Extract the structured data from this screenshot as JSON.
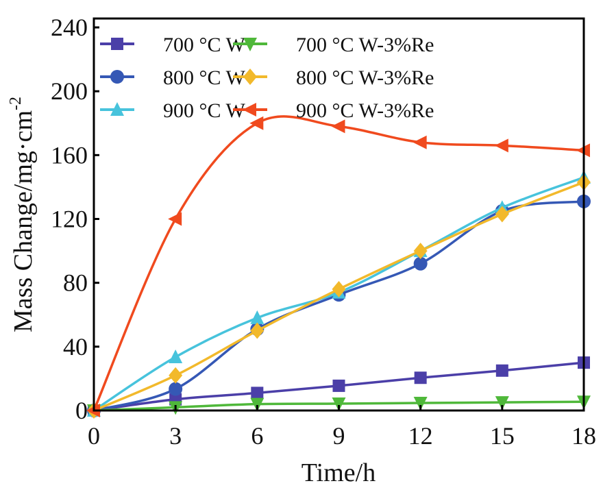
{
  "chart_data": {
    "type": "line",
    "title": "",
    "xlabel": "Time/h",
    "ylabel": "Mass Change/mg·cm",
    "ylabel_superscript": "-2",
    "xlim": [
      0,
      18
    ],
    "ylim": [
      0,
      240
    ],
    "xticks": [
      0,
      3,
      6,
      9,
      12,
      15,
      18
    ],
    "yticks": [
      0,
      40,
      80,
      120,
      160,
      200,
      240
    ],
    "grid": false,
    "legend_position": "top",
    "x": [
      0,
      3,
      6,
      9,
      12,
      15,
      18
    ],
    "series": [
      {
        "name": "700 °C W",
        "color": "#4b3fa8",
        "marker": "square",
        "values": [
          0,
          7,
          11,
          15.5,
          20.5,
          25,
          30
        ]
      },
      {
        "name": "800 °C W",
        "color": "#3558b5",
        "marker": "circle",
        "values": [
          0,
          13.5,
          51,
          72.5,
          92,
          125,
          131
        ]
      },
      {
        "name": "900 °C W",
        "color": "#47c3dc",
        "marker": "triangle-up",
        "values": [
          0,
          33.5,
          58,
          74,
          100,
          127,
          146
        ]
      },
      {
        "name": "700 °C W-3%Re",
        "color": "#4fb83a",
        "marker": "triangle-down",
        "values": [
          0,
          2,
          4,
          4.3,
          4.7,
          5.1,
          5.5
        ]
      },
      {
        "name": "800 °C W-3%Re",
        "color": "#f2b92b",
        "marker": "diamond",
        "values": [
          0,
          22,
          50,
          76,
          100,
          123,
          143
        ]
      },
      {
        "name": "900 °C W-3%Re",
        "color": "#f04a1e",
        "marker": "triangle-left",
        "values": [
          0,
          120,
          180,
          178,
          168,
          166,
          163
        ]
      }
    ]
  }
}
